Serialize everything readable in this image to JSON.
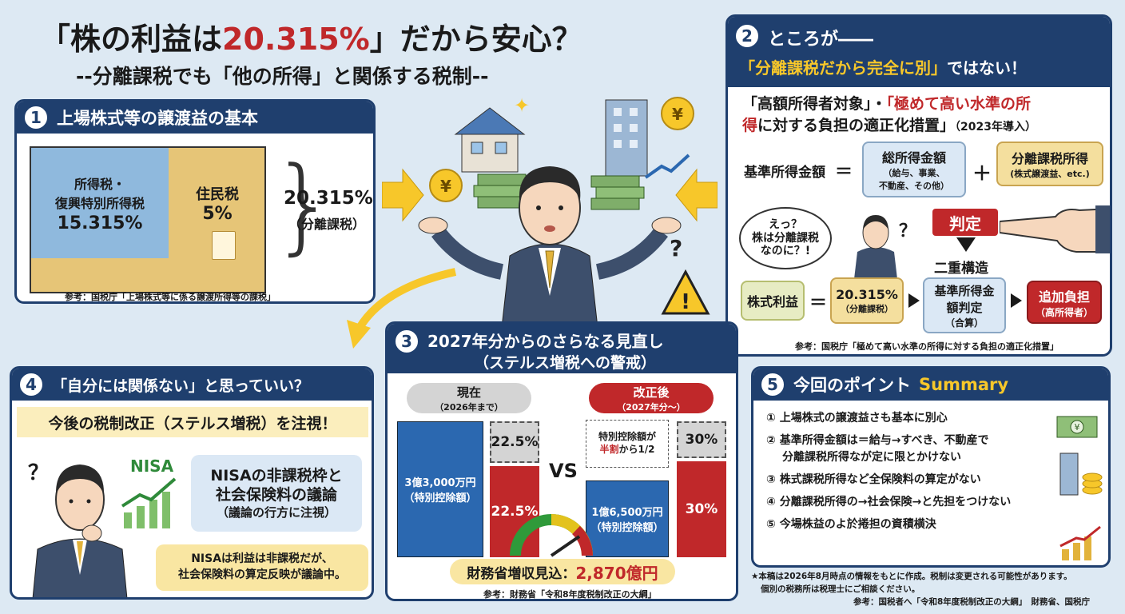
{
  "title": {
    "open": "「株の利益は",
    "highlight": "20.315%",
    "close": "」だから安心？",
    "subtitle": "--分離課税でも「他の所得」と関係する税制--"
  },
  "colors": {
    "navy": "#1f3f6e",
    "red": "#c0282a",
    "blue": "#5f97cc",
    "tan": "#e6c577",
    "yellow": "#f7c72a"
  },
  "p1": {
    "num": "1",
    "heading": "上場株式等の譲渡益の基本",
    "left_line1": "所得税・",
    "left_line2": "復興特別所得税",
    "left_value": "15.315%",
    "right_label": "住民税",
    "right_value": "5%",
    "total": "20.315%",
    "total_note": "（分離課税）",
    "source": "参考：国税庁「上場株式等に係る譲渡所得等の課税」"
  },
  "p2": {
    "num": "2",
    "heading": "ところが――",
    "banner_open": "「分離課税だから完全に別」",
    "banner_close": "ではない！",
    "desc_a": "「高額所得者対象」・",
    "desc_b": "「極めて高い水準の所",
    "desc_c": "得",
    "desc_d": "に対する負担の適正化措置」",
    "desc_year": "（2023年導入）",
    "basis_label": "基準所得金額",
    "eq": "＝",
    "plus": "＋",
    "total_income": "総所得金額",
    "total_income_note1": "（給与、事業、",
    "total_income_note2": "不動産、その他）",
    "sep_income": "分離課税所得",
    "sep_income_note": "(株式譲渡益、etc.)",
    "bubble1": "えっ？",
    "bubble2": "株は分離課税",
    "bubble3": "なのに？!",
    "q": "？",
    "judge": "判定",
    "dual": "二重構造",
    "stock_profit": "株式利益",
    "rate": "20.315%",
    "rate_note": "（分離課税）",
    "basis_judge1": "基準所得金",
    "basis_judge2": "額判定",
    "basis_judge_note": "（合算）",
    "extra": "追加負担",
    "extra_note": "（高所得者）",
    "source": "参考：国税庁「極めて高い水準の所得に対する負担の適正化措置」"
  },
  "p3": {
    "num": "3",
    "heading1": "2027年分からのさらなる見直し",
    "heading2": "（ステルス増税への警戒）",
    "now_label": "現在",
    "now_sub": "（2026年まで）",
    "after_label": "改正後",
    "after_sub": "（2027年分～）",
    "now_bar1": "3億3,000万円",
    "now_bar2": "（特別控除額）",
    "now_top": "22.5%",
    "now_bottom": "22.5%",
    "vs": "VS",
    "half_note1": "特別控除額が",
    "half_note2": "半割",
    "half_note3": "から1/2",
    "after_bar1": "1億6,500万円",
    "after_bar2": "（特別控除額）",
    "after_top": "30%",
    "after_bottom": "30%",
    "revenue": "財務省増収見込：",
    "revenue_value": "2,870億円",
    "source": "参考：財務省「令和8年度税制改正の大綱」"
  },
  "p4": {
    "num": "4",
    "heading": "「自分には関係ない」と思っていい？",
    "banner": "今後の税制改正（ステルス増税）を注視！",
    "nisa": "NISA",
    "card1": "NISAの非課税枠と",
    "card2": "社会保険料の議論",
    "card3": "（議論の行方に注視）",
    "note1": "NISAは利益は非課税だが、",
    "note2": "社会保険料の算定反映が議論中。",
    "q": "？"
  },
  "p5": {
    "num": "5",
    "heading": "今回のポイント",
    "heading_en": "Summary",
    "points": [
      {
        "n": "①",
        "t": "上場株式の譲渡益さも基本に別心"
      },
      {
        "n": "②",
        "t": "基準所得金額は＝給与→すべき、不動産で"
      },
      {
        "n": "",
        "t": "分離課税所得なが定に限とかけない"
      },
      {
        "n": "③",
        "t": "株式課税所得など全保険料の算定がない"
      },
      {
        "n": "④",
        "t": "分離課税所得の→社会保険→と先担をつけない"
      },
      {
        "n": "⑤",
        "t": "今場株益のよ於捲担の資積横決"
      }
    ]
  },
  "footer": {
    "line1": "★本稿は2026年8月時点の情報をもとに作成。税制は変更される可能性があります。",
    "line2": "個別の税務所は税理士にご相談ください。",
    "line3": "参考：国税者へ「令和8年度税制改正の大綱」　財務省、国税庁"
  },
  "yen": "¥"
}
